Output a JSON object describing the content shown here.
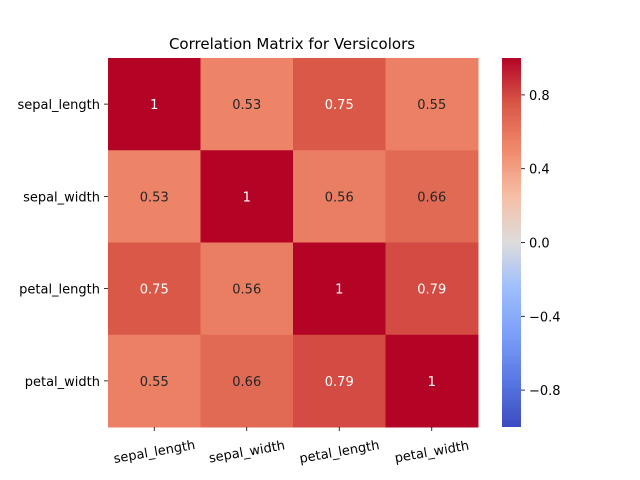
{
  "chart_data": {
    "type": "heatmap",
    "title": "Correlation Matrix for Versicolors",
    "xlabel": "",
    "ylabel": "",
    "x_categories": [
      "sepal_length",
      "sepal_width",
      "petal_length",
      "petal_width"
    ],
    "y_categories": [
      "sepal_length",
      "sepal_width",
      "petal_length",
      "petal_width"
    ],
    "values": [
      [
        1,
        0.53,
        0.75,
        0.55
      ],
      [
        0.53,
        1,
        0.56,
        0.66
      ],
      [
        0.75,
        0.56,
        1,
        0.79
      ],
      [
        0.55,
        0.66,
        0.79,
        1
      ]
    ],
    "annotations": [
      [
        "1",
        "0.53",
        "0.75",
        "0.55"
      ],
      [
        "0.53",
        "1",
        "0.56",
        "0.66"
      ],
      [
        "0.75",
        "0.56",
        "1",
        "0.79"
      ],
      [
        "0.55",
        "0.66",
        "0.79",
        "1"
      ]
    ],
    "colormap": "coolwarm",
    "vmin": -1,
    "vmax": 1,
    "colorbar": {
      "ticks": [
        0.8,
        0.4,
        0.0,
        -0.4,
        -0.8
      ],
      "tick_labels": [
        "0.8",
        "0.4",
        "0.0",
        "−0.4",
        "−0.8"
      ]
    },
    "x_tick_rotation": 10,
    "colors": {
      "low": "#3b4cc0",
      "mid": "#dddddd",
      "high": "#b40426",
      "annotation_dark": "#262626",
      "annotation_light": "#ffffff"
    }
  }
}
